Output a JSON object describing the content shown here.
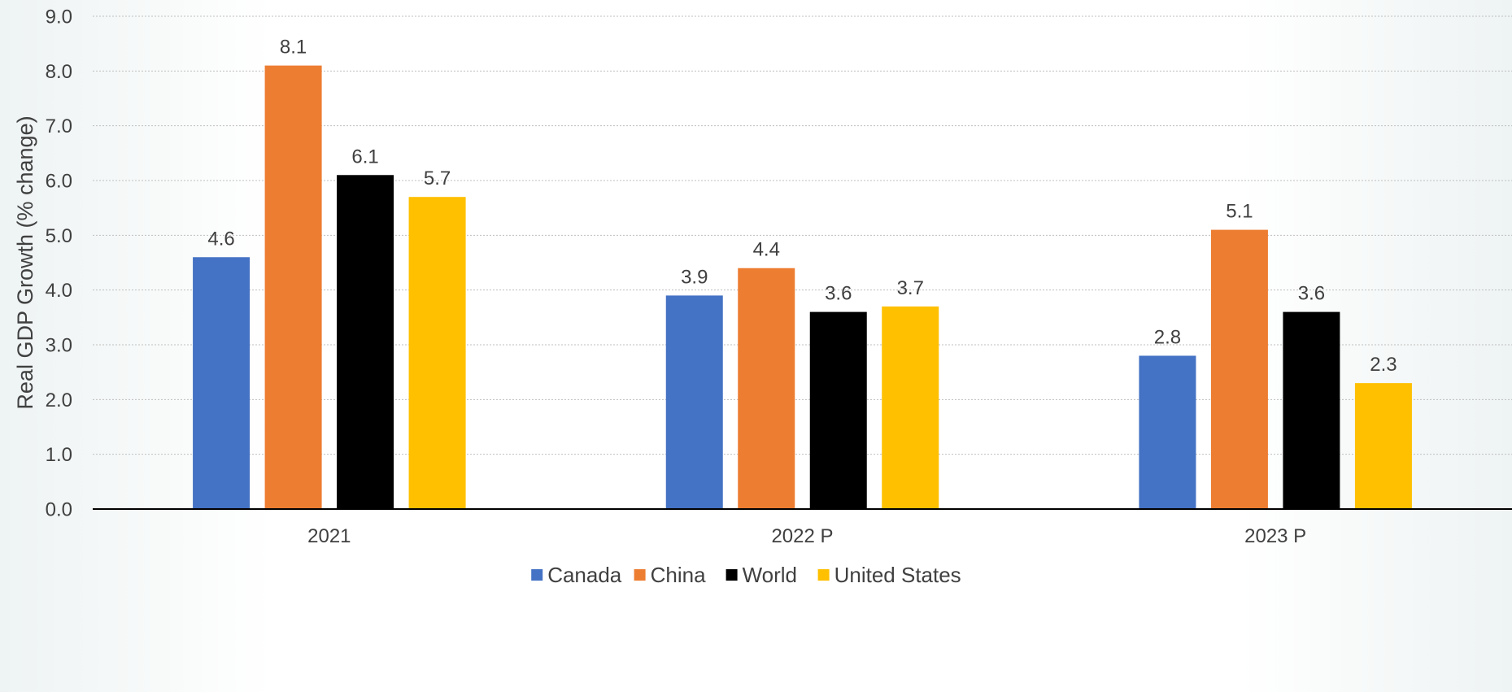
{
  "chart_data": {
    "type": "bar",
    "title": "",
    "xlabel": "",
    "ylabel": "Real GDP Growth (% change)",
    "categories": [
      "2021",
      "2022 P",
      "2023 P"
    ],
    "series": [
      {
        "name": "Canada",
        "color": "#4472C4",
        "values": [
          4.6,
          3.9,
          2.8
        ]
      },
      {
        "name": "China",
        "color": "#ED7D31",
        "values": [
          8.1,
          4.4,
          5.1
        ]
      },
      {
        "name": "World",
        "color": "#000000",
        "values": [
          6.1,
          3.6,
          3.6
        ]
      },
      {
        "name": "United States",
        "color": "#FFC000",
        "values": [
          5.7,
          3.7,
          2.3
        ]
      }
    ],
    "ylim": [
      0,
      9
    ],
    "yticks": [
      "0.0",
      "1.0",
      "2.0",
      "3.0",
      "4.0",
      "5.0",
      "6.0",
      "7.0",
      "8.0",
      "9.0"
    ],
    "data_labels": [
      [
        "4.6",
        "3.9",
        "2.8"
      ],
      [
        "8.1",
        "4.4",
        "5.1"
      ],
      [
        "6.1",
        "3.6",
        "3.6"
      ],
      [
        "5.7",
        "3.7",
        "2.3"
      ]
    ],
    "grid": true,
    "legend_position": "bottom"
  }
}
